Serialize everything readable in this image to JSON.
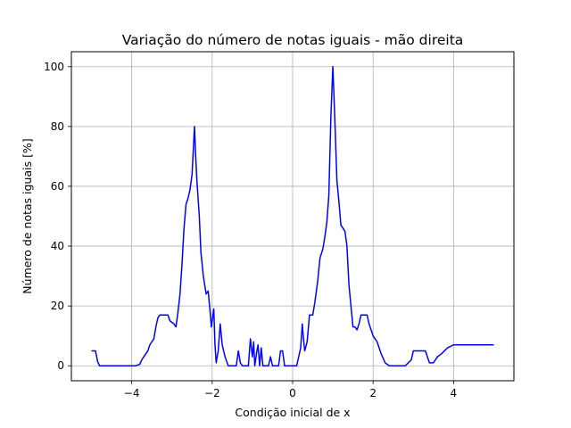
{
  "chart_data": {
    "type": "line",
    "title": "Variação do número de notas iguais  - mão direita",
    "xlabel": "Condição inicial de x",
    "ylabel": "Número de notas iguais [%]",
    "xlim": [
      -5.5,
      5.5
    ],
    "ylim": [
      -5,
      105
    ],
    "xticks": [
      -4,
      -2,
      0,
      2,
      4
    ],
    "yticks": [
      0,
      20,
      40,
      60,
      80,
      100
    ],
    "grid": true,
    "legend": "none",
    "series": [
      {
        "color": "#0000ff",
        "points": [
          [
            -5.0,
            5
          ],
          [
            -4.9,
            5
          ],
          [
            -4.85,
            1.5
          ],
          [
            -4.8,
            0
          ],
          [
            -4.3,
            0
          ],
          [
            -4.1,
            0
          ],
          [
            -3.9,
            0
          ],
          [
            -3.8,
            0.5
          ],
          [
            -3.75,
            2
          ],
          [
            -3.7,
            3
          ],
          [
            -3.6,
            5
          ],
          [
            -3.55,
            7
          ],
          [
            -3.45,
            9
          ],
          [
            -3.4,
            13
          ],
          [
            -3.35,
            16
          ],
          [
            -3.3,
            17
          ],
          [
            -3.1,
            17
          ],
          [
            -3.05,
            15
          ],
          [
            -2.95,
            14
          ],
          [
            -2.9,
            13
          ],
          [
            -2.85,
            18
          ],
          [
            -2.8,
            24
          ],
          [
            -2.75,
            34
          ],
          [
            -2.7,
            46
          ],
          [
            -2.65,
            54
          ],
          [
            -2.6,
            56
          ],
          [
            -2.55,
            59
          ],
          [
            -2.5,
            64
          ],
          [
            -2.47,
            72
          ],
          [
            -2.44,
            80
          ],
          [
            -2.41,
            70
          ],
          [
            -2.38,
            62
          ],
          [
            -2.32,
            50
          ],
          [
            -2.28,
            38
          ],
          [
            -2.22,
            30
          ],
          [
            -2.15,
            24
          ],
          [
            -2.1,
            25
          ],
          [
            -2.05,
            18
          ],
          [
            -2.02,
            13
          ],
          [
            -1.98,
            17
          ],
          [
            -1.96,
            19
          ],
          [
            -1.93,
            7
          ],
          [
            -1.9,
            1
          ],
          [
            -1.85,
            5
          ],
          [
            -1.8,
            14
          ],
          [
            -1.75,
            7
          ],
          [
            -1.68,
            3
          ],
          [
            -1.6,
            0
          ],
          [
            -1.4,
            0
          ],
          [
            -1.35,
            5
          ],
          [
            -1.3,
            1
          ],
          [
            -1.25,
            0
          ],
          [
            -1.1,
            0
          ],
          [
            -1.05,
            9
          ],
          [
            -1.0,
            3
          ],
          [
            -0.97,
            8
          ],
          [
            -0.94,
            0
          ],
          [
            -0.9,
            4
          ],
          [
            -0.86,
            7
          ],
          [
            -0.82,
            0
          ],
          [
            -0.78,
            6
          ],
          [
            -0.74,
            0
          ],
          [
            -0.6,
            0
          ],
          [
            -0.55,
            3
          ],
          [
            -0.5,
            0
          ],
          [
            -0.35,
            0
          ],
          [
            -0.3,
            5
          ],
          [
            -0.25,
            5
          ],
          [
            -0.2,
            0
          ],
          [
            0.1,
            0
          ],
          [
            0.2,
            6
          ],
          [
            0.24,
            14
          ],
          [
            0.27,
            9
          ],
          [
            0.3,
            5
          ],
          [
            0.36,
            8
          ],
          [
            0.42,
            17
          ],
          [
            0.5,
            17
          ],
          [
            0.55,
            21
          ],
          [
            0.62,
            28
          ],
          [
            0.68,
            36
          ],
          [
            0.75,
            39
          ],
          [
            0.8,
            43
          ],
          [
            0.85,
            48
          ],
          [
            0.9,
            57
          ],
          [
            0.95,
            83
          ],
          [
            1.0,
            100
          ],
          [
            1.05,
            82
          ],
          [
            1.1,
            62
          ],
          [
            1.15,
            55
          ],
          [
            1.2,
            47
          ],
          [
            1.3,
            45
          ],
          [
            1.35,
            40
          ],
          [
            1.4,
            27
          ],
          [
            1.45,
            20
          ],
          [
            1.5,
            13
          ],
          [
            1.55,
            13
          ],
          [
            1.6,
            12
          ],
          [
            1.65,
            14
          ],
          [
            1.7,
            17
          ],
          [
            1.85,
            17
          ],
          [
            1.9,
            14
          ],
          [
            2.0,
            10
          ],
          [
            2.1,
            8
          ],
          [
            2.2,
            4
          ],
          [
            2.3,
            1
          ],
          [
            2.4,
            0
          ],
          [
            2.8,
            0
          ],
          [
            2.95,
            2
          ],
          [
            3.0,
            5
          ],
          [
            3.3,
            5
          ],
          [
            3.4,
            1
          ],
          [
            3.5,
            1
          ],
          [
            3.6,
            3
          ],
          [
            3.7,
            4
          ],
          [
            3.85,
            6
          ],
          [
            4.0,
            7
          ],
          [
            4.2,
            7
          ],
          [
            5.0,
            7
          ]
        ]
      }
    ]
  }
}
